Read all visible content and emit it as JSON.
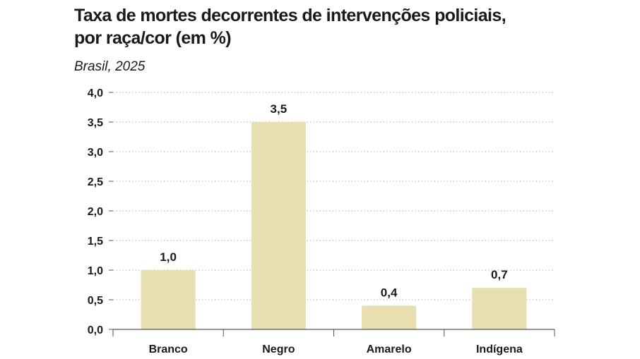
{
  "chart_data": {
    "type": "bar",
    "title_lines": [
      "Taxa de mortes decorrentes de intervenções policiais,",
      "por raça/cor (em %)"
    ],
    "subtitle": "Brasil, 2025",
    "categories": [
      "Branco",
      "Negro",
      "Amarelo",
      "Indígena"
    ],
    "values": [
      1.0,
      3.5,
      0.4,
      0.7
    ],
    "value_labels": [
      "1,0",
      "3,5",
      "0,4",
      "0,7"
    ],
    "yticks": [
      0,
      0.5,
      1.0,
      1.5,
      2.0,
      2.5,
      3.0,
      3.5,
      4.0
    ],
    "ytick_labels": [
      "0,0",
      "0,5",
      "1,0",
      "1,5",
      "2,0",
      "2,5",
      "3,0",
      "3,5",
      "4,0"
    ],
    "ylim": [
      0,
      4.0
    ],
    "xlabel": "",
    "ylabel": "",
    "grid": "horizontal-dotted",
    "legend": "none",
    "bar_color": "#e8dfb0",
    "grid_color": "#b0b0b0",
    "axis_color": "#555555"
  }
}
